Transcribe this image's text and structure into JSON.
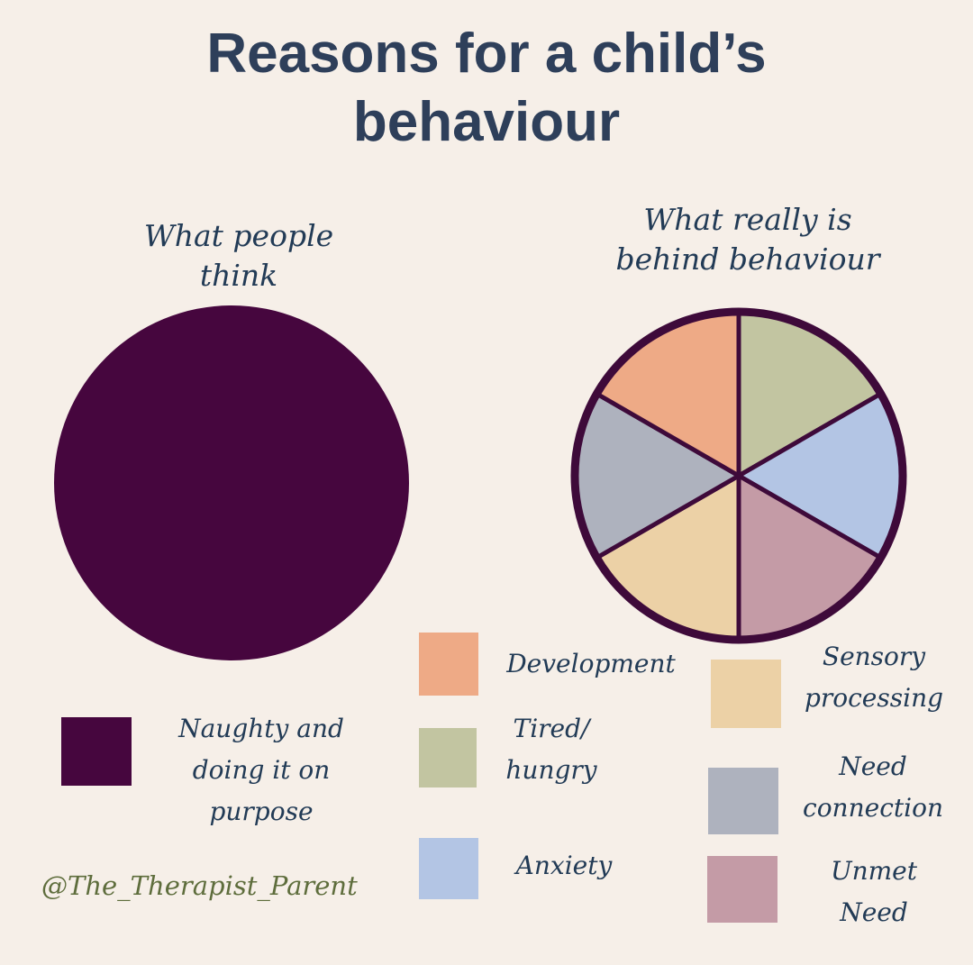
{
  "title": {
    "line1": "Reasons for a child’s",
    "line2": "behaviour"
  },
  "subtitles": {
    "left": [
      "What people",
      "think"
    ],
    "right": [
      "What really is",
      "behind behaviour"
    ]
  },
  "credit": "@The_Therapist_Parent",
  "colors": {
    "background": "#f6efe8",
    "title": "#2e3f5a",
    "outline": "#3e0a3a"
  },
  "chart_data": [
    {
      "type": "pie",
      "title": "What people think",
      "slices": [
        {
          "label": "Naughty and doing it on purpose",
          "value": 100,
          "color": "#46063e"
        }
      ]
    },
    {
      "type": "pie",
      "title": "What really is behind behaviour",
      "slices": [
        {
          "label": "Tired/ hungry",
          "value": 1,
          "color": "#c2c5a1"
        },
        {
          "label": "Anxiety",
          "value": 1,
          "color": "#b3c5e4"
        },
        {
          "label": "Unmet Need",
          "value": 1,
          "color": "#c49ba6"
        },
        {
          "label": "Sensory processing",
          "value": 1,
          "color": "#ecd1a6"
        },
        {
          "label": "Need connection",
          "value": 1,
          "color": "#aeb2be"
        },
        {
          "label": "Development",
          "value": 1,
          "color": "#eeaa86"
        }
      ]
    }
  ],
  "legend": {
    "left": [
      {
        "lines": [
          "Naughty and",
          "doing it on",
          "purpose"
        ],
        "color": "#46063e"
      }
    ],
    "middle": [
      {
        "lines": [
          "Development"
        ],
        "color": "#eeaa86"
      },
      {
        "lines": [
          "Tired/",
          "hungry"
        ],
        "color": "#c2c5a1"
      },
      {
        "lines": [
          "Anxiety"
        ],
        "color": "#b3c5e4"
      }
    ],
    "right": [
      {
        "lines": [
          "Sensory",
          "processing"
        ],
        "color": "#ecd1a6"
      },
      {
        "lines": [
          "Need",
          "connection"
        ],
        "color": "#aeb2be"
      },
      {
        "lines": [
          "Unmet",
          "Need"
        ],
        "color": "#c49ba6"
      }
    ]
  }
}
